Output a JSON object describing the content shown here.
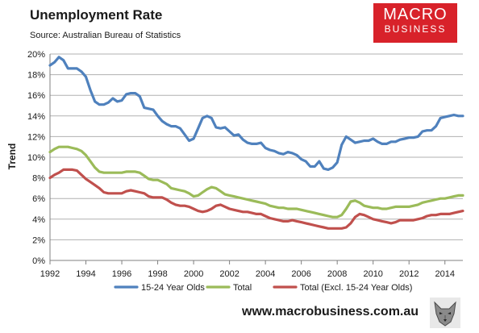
{
  "header": {
    "title": "Unemployment Rate",
    "source": "Source: Australian Bureau of Statistics"
  },
  "logo": {
    "line1": "MACRO",
    "line2": "BUSINESS",
    "color": "#d8222a"
  },
  "footer": {
    "url": "www.macrobusiness.com.au",
    "mascot_icon": "wolf-head-icon"
  },
  "chart_data": {
    "type": "line",
    "ylabel": "Trend",
    "xlim": [
      1992,
      2015
    ],
    "ylim": [
      0,
      20
    ],
    "x_ticks": [
      "1992",
      "1994",
      "1996",
      "1998",
      "2000",
      "2002",
      "2004",
      "2006",
      "2008",
      "2010",
      "2012",
      "2014"
    ],
    "y_ticks": [
      "0%",
      "2%",
      "4%",
      "6%",
      "8%",
      "10%",
      "12%",
      "14%",
      "16%",
      "18%",
      "20%"
    ],
    "grid": "horizontal",
    "legend": "bottom",
    "series": [
      {
        "name": "15-24 Year Olds",
        "color": "#4f81bd",
        "x": [
          1992.0,
          1992.25,
          1992.5,
          1992.75,
          1993.0,
          1993.25,
          1993.5,
          1993.75,
          1994.0,
          1994.25,
          1994.5,
          1994.75,
          1995.0,
          1995.25,
          1995.5,
          1995.75,
          1996.0,
          1996.25,
          1996.5,
          1996.75,
          1997.0,
          1997.25,
          1997.5,
          1997.75,
          1998.0,
          1998.25,
          1998.5,
          1998.75,
          1999.0,
          1999.25,
          1999.5,
          1999.75,
          2000.0,
          2000.25,
          2000.5,
          2000.75,
          2001.0,
          2001.25,
          2001.5,
          2001.75,
          2002.0,
          2002.25,
          2002.5,
          2002.75,
          2003.0,
          2003.25,
          2003.5,
          2003.75,
          2004.0,
          2004.25,
          2004.5,
          2004.75,
          2005.0,
          2005.25,
          2005.5,
          2005.75,
          2006.0,
          2006.25,
          2006.5,
          2006.75,
          2007.0,
          2007.25,
          2007.5,
          2007.75,
          2008.0,
          2008.25,
          2008.5,
          2008.75,
          2009.0,
          2009.25,
          2009.5,
          2009.75,
          2010.0,
          2010.25,
          2010.5,
          2010.75,
          2011.0,
          2011.25,
          2011.5,
          2011.75,
          2012.0,
          2012.25,
          2012.5,
          2012.75,
          2013.0,
          2013.25,
          2013.5,
          2013.75,
          2014.0,
          2014.25,
          2014.5,
          2014.75,
          2015.0
        ],
        "values": [
          18.9,
          19.2,
          19.7,
          19.4,
          18.6,
          18.6,
          18.6,
          18.3,
          17.8,
          16.5,
          15.4,
          15.1,
          15.1,
          15.3,
          15.7,
          15.4,
          15.5,
          16.1,
          16.2,
          16.2,
          15.9,
          14.8,
          14.7,
          14.6,
          14.0,
          13.5,
          13.2,
          13.0,
          13.0,
          12.8,
          12.2,
          11.6,
          11.8,
          12.8,
          13.8,
          14.0,
          13.8,
          12.9,
          12.8,
          12.9,
          12.5,
          12.1,
          12.2,
          11.7,
          11.4,
          11.3,
          11.3,
          11.4,
          10.9,
          10.7,
          10.6,
          10.4,
          10.3,
          10.5,
          10.4,
          10.2,
          9.8,
          9.6,
          9.1,
          9.1,
          9.6,
          8.9,
          8.8,
          9.0,
          9.5,
          11.2,
          12.0,
          11.7,
          11.4,
          11.5,
          11.6,
          11.6,
          11.8,
          11.5,
          11.3,
          11.3,
          11.5,
          11.5,
          11.7,
          11.8,
          11.9,
          11.9,
          12.0,
          12.5,
          12.6,
          12.6,
          13.0,
          13.8,
          13.9,
          14.0,
          14.1,
          14.0,
          14.0
        ]
      },
      {
        "name": "Total",
        "color": "#9bbb59",
        "x": [
          1992.0,
          1992.25,
          1992.5,
          1992.75,
          1993.0,
          1993.25,
          1993.5,
          1993.75,
          1994.0,
          1994.25,
          1994.5,
          1994.75,
          1995.0,
          1995.25,
          1995.5,
          1995.75,
          1996.0,
          1996.25,
          1996.5,
          1996.75,
          1997.0,
          1997.25,
          1997.5,
          1997.75,
          1998.0,
          1998.25,
          1998.5,
          1998.75,
          1999.0,
          1999.25,
          1999.5,
          1999.75,
          2000.0,
          2000.25,
          2000.5,
          2000.75,
          2001.0,
          2001.25,
          2001.5,
          2001.75,
          2002.0,
          2002.25,
          2002.5,
          2002.75,
          2003.0,
          2003.25,
          2003.5,
          2003.75,
          2004.0,
          2004.25,
          2004.5,
          2004.75,
          2005.0,
          2005.25,
          2005.5,
          2005.75,
          2006.0,
          2006.25,
          2006.5,
          2006.75,
          2007.0,
          2007.25,
          2007.5,
          2007.75,
          2008.0,
          2008.25,
          2008.5,
          2008.75,
          2009.0,
          2009.25,
          2009.5,
          2009.75,
          2010.0,
          2010.25,
          2010.5,
          2010.75,
          2011.0,
          2011.25,
          2011.5,
          2011.75,
          2012.0,
          2012.25,
          2012.5,
          2012.75,
          2013.0,
          2013.25,
          2013.5,
          2013.75,
          2014.0,
          2014.25,
          2014.5,
          2014.75,
          2015.0
        ],
        "values": [
          10.5,
          10.8,
          11.0,
          11.0,
          11.0,
          10.9,
          10.8,
          10.6,
          10.2,
          9.6,
          9.0,
          8.6,
          8.5,
          8.5,
          8.5,
          8.5,
          8.5,
          8.6,
          8.6,
          8.6,
          8.5,
          8.2,
          7.9,
          7.8,
          7.8,
          7.6,
          7.4,
          7.0,
          6.9,
          6.8,
          6.7,
          6.5,
          6.2,
          6.3,
          6.6,
          6.9,
          7.1,
          7.0,
          6.7,
          6.4,
          6.3,
          6.2,
          6.1,
          6.0,
          5.9,
          5.8,
          5.7,
          5.6,
          5.5,
          5.3,
          5.2,
          5.1,
          5.1,
          5.0,
          5.0,
          5.0,
          4.9,
          4.8,
          4.7,
          4.6,
          4.5,
          4.4,
          4.3,
          4.2,
          4.2,
          4.4,
          5.0,
          5.7,
          5.8,
          5.6,
          5.3,
          5.2,
          5.1,
          5.1,
          5.0,
          5.0,
          5.1,
          5.2,
          5.2,
          5.2,
          5.2,
          5.3,
          5.4,
          5.6,
          5.7,
          5.8,
          5.9,
          6.0,
          6.0,
          6.1,
          6.2,
          6.3,
          6.3
        ]
      },
      {
        "name": "Total (Excl. 15-24 Year Olds)",
        "color": "#c0504d",
        "x": [
          1992.0,
          1992.25,
          1992.5,
          1992.75,
          1993.0,
          1993.25,
          1993.5,
          1993.75,
          1994.0,
          1994.25,
          1994.5,
          1994.75,
          1995.0,
          1995.25,
          1995.5,
          1995.75,
          1996.0,
          1996.25,
          1996.5,
          1996.75,
          1997.0,
          1997.25,
          1997.5,
          1997.75,
          1998.0,
          1998.25,
          1998.5,
          1998.75,
          1999.0,
          1999.25,
          1999.5,
          1999.75,
          2000.0,
          2000.25,
          2000.5,
          2000.75,
          2001.0,
          2001.25,
          2001.5,
          2001.75,
          2002.0,
          2002.25,
          2002.5,
          2002.75,
          2003.0,
          2003.25,
          2003.5,
          2003.75,
          2004.0,
          2004.25,
          2004.5,
          2004.75,
          2005.0,
          2005.25,
          2005.5,
          2005.75,
          2006.0,
          2006.25,
          2006.5,
          2006.75,
          2007.0,
          2007.25,
          2007.5,
          2007.75,
          2008.0,
          2008.25,
          2008.5,
          2008.75,
          2009.0,
          2009.25,
          2009.5,
          2009.75,
          2010.0,
          2010.25,
          2010.5,
          2010.75,
          2011.0,
          2011.25,
          2011.5,
          2011.75,
          2012.0,
          2012.25,
          2012.5,
          2012.75,
          2013.0,
          2013.25,
          2013.5,
          2013.75,
          2014.0,
          2014.25,
          2014.5,
          2014.75,
          2015.0
        ],
        "values": [
          8.0,
          8.3,
          8.5,
          8.8,
          8.8,
          8.8,
          8.7,
          8.3,
          7.9,
          7.6,
          7.3,
          7.0,
          6.6,
          6.5,
          6.5,
          6.5,
          6.5,
          6.7,
          6.8,
          6.7,
          6.6,
          6.5,
          6.2,
          6.1,
          6.1,
          6.1,
          5.9,
          5.6,
          5.4,
          5.3,
          5.3,
          5.2,
          5.0,
          4.8,
          4.7,
          4.8,
          5.0,
          5.3,
          5.4,
          5.2,
          5.0,
          4.9,
          4.8,
          4.7,
          4.7,
          4.6,
          4.5,
          4.5,
          4.3,
          4.1,
          4.0,
          3.9,
          3.8,
          3.8,
          3.9,
          3.8,
          3.7,
          3.6,
          3.5,
          3.4,
          3.3,
          3.2,
          3.1,
          3.1,
          3.1,
          3.1,
          3.2,
          3.6,
          4.2,
          4.5,
          4.4,
          4.2,
          4.0,
          3.9,
          3.8,
          3.7,
          3.6,
          3.7,
          3.9,
          3.9,
          3.9,
          3.9,
          4.0,
          4.1,
          4.3,
          4.4,
          4.4,
          4.5,
          4.5,
          4.5,
          4.6,
          4.7,
          4.8
        ]
      }
    ]
  }
}
